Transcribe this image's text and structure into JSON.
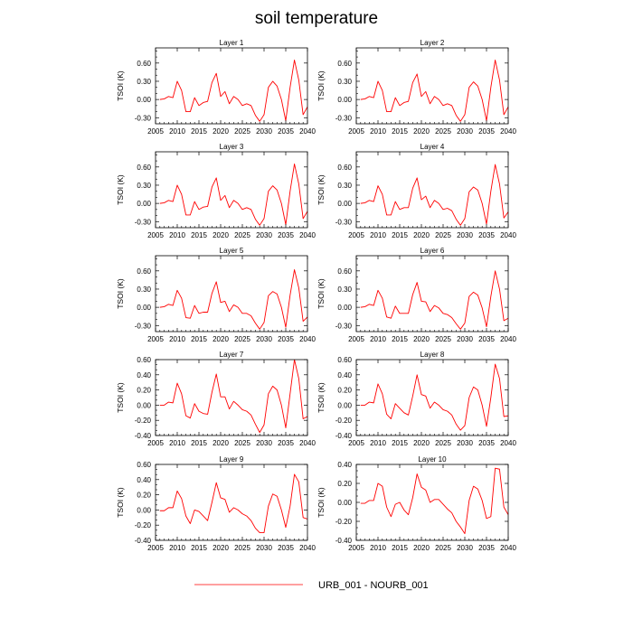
{
  "title": "soil temperature",
  "colors": {
    "series": "#ff0000",
    "axis": "#000000",
    "background": "#ffffff"
  },
  "legend": {
    "label": "URB_001 - NOURB_001",
    "placement": "bottom-center"
  },
  "chart_data": [
    {
      "type": "line",
      "title": "Layer 1",
      "xlabel": "",
      "ylabel": "TSOI  (K)",
      "xlim": [
        2005,
        2040
      ],
      "ylim": [
        -0.4,
        0.85
      ],
      "xticks": [
        2005,
        2010,
        2015,
        2020,
        2025,
        2030,
        2035,
        2040
      ],
      "yticks": [
        -0.3,
        0.0,
        0.3,
        0.6
      ],
      "ytick_labels": [
        "-0.30",
        "0.00",
        "0.30",
        "0.60"
      ],
      "x": [
        2006,
        2007,
        2008,
        2009,
        2010,
        2011,
        2012,
        2013,
        2014,
        2015,
        2016,
        2017,
        2018,
        2019,
        2020,
        2021,
        2022,
        2023,
        2024,
        2025,
        2026,
        2027,
        2028,
        2029,
        2030,
        2031,
        2032,
        2033,
        2034,
        2035,
        2036,
        2037,
        2038,
        2039,
        2040
      ],
      "series": [
        {
          "name": "URB_001 - NOURB_001",
          "values": [
            0.0,
            0.01,
            0.05,
            0.03,
            0.3,
            0.15,
            -0.2,
            -0.2,
            0.03,
            -0.1,
            -0.05,
            -0.03,
            0.28,
            0.43,
            0.05,
            0.13,
            -0.07,
            0.05,
            0.0,
            -0.1,
            -0.07,
            -0.1,
            -0.26,
            -0.36,
            -0.25,
            0.2,
            0.3,
            0.22,
            0.0,
            -0.35,
            0.2,
            0.65,
            0.32,
            -0.25,
            -0.12
          ]
        }
      ]
    },
    {
      "type": "line",
      "title": "Layer 2",
      "xlabel": "",
      "ylabel": "TSOI  (K)",
      "xlim": [
        2005,
        2040
      ],
      "ylim": [
        -0.4,
        0.85
      ],
      "xticks": [
        2005,
        2010,
        2015,
        2020,
        2025,
        2030,
        2035,
        2040
      ],
      "yticks": [
        -0.3,
        0.0,
        0.3,
        0.6
      ],
      "ytick_labels": [
        "-0.30",
        "0.00",
        "0.30",
        "0.60"
      ],
      "x": [
        2006,
        2007,
        2008,
        2009,
        2010,
        2011,
        2012,
        2013,
        2014,
        2015,
        2016,
        2017,
        2018,
        2019,
        2020,
        2021,
        2022,
        2023,
        2024,
        2025,
        2026,
        2027,
        2028,
        2029,
        2030,
        2031,
        2032,
        2033,
        2034,
        2035,
        2036,
        2037,
        2038,
        2039,
        2040
      ],
      "series": [
        {
          "name": "URB_001 - NOURB_001",
          "values": [
            0.0,
            0.01,
            0.05,
            0.03,
            0.3,
            0.15,
            -0.2,
            -0.2,
            0.03,
            -0.1,
            -0.05,
            -0.03,
            0.28,
            0.42,
            0.05,
            0.13,
            -0.07,
            0.05,
            0.0,
            -0.1,
            -0.07,
            -0.1,
            -0.26,
            -0.36,
            -0.25,
            0.2,
            0.29,
            0.22,
            0.0,
            -0.35,
            0.2,
            0.65,
            0.32,
            -0.25,
            -0.12
          ]
        }
      ]
    },
    {
      "type": "line",
      "title": "Layer 3",
      "xlabel": "",
      "ylabel": "TSOI  (K)",
      "xlim": [
        2005,
        2040
      ],
      "ylim": [
        -0.4,
        0.85
      ],
      "xticks": [
        2005,
        2010,
        2015,
        2020,
        2025,
        2030,
        2035,
        2040
      ],
      "yticks": [
        -0.3,
        0.0,
        0.3,
        0.6
      ],
      "ytick_labels": [
        "-0.30",
        "0.00",
        "0.30",
        "0.60"
      ],
      "x": [
        2006,
        2007,
        2008,
        2009,
        2010,
        2011,
        2012,
        2013,
        2014,
        2015,
        2016,
        2017,
        2018,
        2019,
        2020,
        2021,
        2022,
        2023,
        2024,
        2025,
        2026,
        2027,
        2028,
        2029,
        2030,
        2031,
        2032,
        2033,
        2034,
        2035,
        2036,
        2037,
        2038,
        2039,
        2040
      ],
      "series": [
        {
          "name": "URB_001 - NOURB_001",
          "values": [
            0.0,
            0.01,
            0.05,
            0.03,
            0.3,
            0.15,
            -0.19,
            -0.19,
            0.03,
            -0.1,
            -0.06,
            -0.05,
            0.27,
            0.42,
            0.05,
            0.13,
            -0.07,
            0.05,
            0.0,
            -0.1,
            -0.07,
            -0.1,
            -0.26,
            -0.36,
            -0.25,
            0.2,
            0.29,
            0.22,
            0.0,
            -0.35,
            0.2,
            0.65,
            0.32,
            -0.25,
            -0.13
          ]
        }
      ]
    },
    {
      "type": "line",
      "title": "Layer 4",
      "xlabel": "",
      "ylabel": "TSOI  (K)",
      "xlim": [
        2005,
        2040
      ],
      "ylim": [
        -0.4,
        0.85
      ],
      "xticks": [
        2005,
        2010,
        2015,
        2020,
        2025,
        2030,
        2035,
        2040
      ],
      "yticks": [
        -0.3,
        0.0,
        0.3,
        0.6
      ],
      "ytick_labels": [
        "-0.30",
        "0.00",
        "0.30",
        "0.60"
      ],
      "x": [
        2006,
        2007,
        2008,
        2009,
        2010,
        2011,
        2012,
        2013,
        2014,
        2015,
        2016,
        2017,
        2018,
        2019,
        2020,
        2021,
        2022,
        2023,
        2024,
        2025,
        2026,
        2027,
        2028,
        2029,
        2030,
        2031,
        2032,
        2033,
        2034,
        2035,
        2036,
        2037,
        2038,
        2039,
        2040
      ],
      "series": [
        {
          "name": "URB_001 - NOURB_001",
          "values": [
            0.0,
            0.01,
            0.05,
            0.03,
            0.29,
            0.15,
            -0.19,
            -0.19,
            0.03,
            -0.1,
            -0.07,
            -0.07,
            0.25,
            0.42,
            0.06,
            0.12,
            -0.07,
            0.05,
            0.0,
            -0.1,
            -0.08,
            -0.12,
            -0.26,
            -0.36,
            -0.25,
            0.19,
            0.27,
            0.22,
            0.0,
            -0.34,
            0.2,
            0.64,
            0.32,
            -0.24,
            -0.14
          ]
        }
      ]
    },
    {
      "type": "line",
      "title": "Layer 5",
      "xlabel": "",
      "ylabel": "TSOI  (K)",
      "xlim": [
        2005,
        2040
      ],
      "ylim": [
        -0.4,
        0.85
      ],
      "xticks": [
        2005,
        2010,
        2015,
        2020,
        2025,
        2030,
        2035,
        2040
      ],
      "yticks": [
        -0.3,
        0.0,
        0.3,
        0.6
      ],
      "ytick_labels": [
        "-0.30",
        "0.00",
        "0.30",
        "0.60"
      ],
      "x": [
        2006,
        2007,
        2008,
        2009,
        2010,
        2011,
        2012,
        2013,
        2014,
        2015,
        2016,
        2017,
        2018,
        2019,
        2020,
        2021,
        2022,
        2023,
        2024,
        2025,
        2026,
        2027,
        2028,
        2029,
        2030,
        2031,
        2032,
        2033,
        2034,
        2035,
        2036,
        2037,
        2038,
        2039,
        2040
      ],
      "series": [
        {
          "name": "URB_001 - NOURB_001",
          "values": [
            0.0,
            0.01,
            0.05,
            0.03,
            0.28,
            0.15,
            -0.17,
            -0.18,
            0.03,
            -0.1,
            -0.08,
            -0.08,
            0.23,
            0.42,
            0.08,
            0.1,
            -0.07,
            0.04,
            0.0,
            -0.1,
            -0.1,
            -0.14,
            -0.26,
            -0.36,
            -0.25,
            0.19,
            0.26,
            0.22,
            0.0,
            -0.33,
            0.2,
            0.62,
            0.32,
            -0.23,
            -0.16
          ]
        }
      ]
    },
    {
      "type": "line",
      "title": "Layer 6",
      "xlabel": "",
      "ylabel": "TSOI  (K)",
      "xlim": [
        2005,
        2040
      ],
      "ylim": [
        -0.4,
        0.85
      ],
      "xticks": [
        2005,
        2010,
        2015,
        2020,
        2025,
        2030,
        2035,
        2040
      ],
      "yticks": [
        -0.3,
        0.0,
        0.3,
        0.6
      ],
      "ytick_labels": [
        "-0.30",
        "0.00",
        "0.30",
        "0.60"
      ],
      "x": [
        2006,
        2007,
        2008,
        2009,
        2010,
        2011,
        2012,
        2013,
        2014,
        2015,
        2016,
        2017,
        2018,
        2019,
        2020,
        2021,
        2022,
        2023,
        2024,
        2025,
        2026,
        2027,
        2028,
        2029,
        2030,
        2031,
        2032,
        2033,
        2034,
        2035,
        2036,
        2037,
        2038,
        2039,
        2040
      ],
      "series": [
        {
          "name": "URB_001 - NOURB_001",
          "values": [
            0.0,
            0.01,
            0.05,
            0.03,
            0.28,
            0.15,
            -0.16,
            -0.18,
            0.02,
            -0.1,
            -0.1,
            -0.1,
            0.21,
            0.41,
            0.1,
            0.09,
            -0.07,
            0.03,
            -0.01,
            -0.1,
            -0.12,
            -0.17,
            -0.27,
            -0.36,
            -0.26,
            0.18,
            0.25,
            0.2,
            -0.01,
            -0.32,
            0.18,
            0.6,
            0.3,
            -0.22,
            -0.18
          ]
        }
      ]
    },
    {
      "type": "line",
      "title": "Layer 7",
      "xlabel": "",
      "ylabel": "TSOI  (K)",
      "xlim": [
        2005,
        2040
      ],
      "ylim": [
        -0.4,
        0.6
      ],
      "xticks": [
        2005,
        2010,
        2015,
        2020,
        2025,
        2030,
        2035,
        2040
      ],
      "yticks": [
        -0.4,
        -0.2,
        0.0,
        0.2,
        0.4,
        0.6
      ],
      "ytick_labels": [
        "-0.40",
        "-0.20",
        "0.00",
        "0.20",
        "0.40",
        "0.60"
      ],
      "x": [
        2006,
        2007,
        2008,
        2009,
        2010,
        2011,
        2012,
        2013,
        2014,
        2015,
        2016,
        2017,
        2018,
        2019,
        2020,
        2021,
        2022,
        2023,
        2024,
        2025,
        2026,
        2027,
        2028,
        2029,
        2030,
        2031,
        2032,
        2033,
        2034,
        2035,
        2036,
        2037,
        2038,
        2039,
        2040
      ],
      "series": [
        {
          "name": "URB_001 - NOURB_001",
          "values": [
            0.0,
            0.0,
            0.04,
            0.03,
            0.29,
            0.15,
            -0.14,
            -0.17,
            0.02,
            -0.08,
            -0.11,
            -0.12,
            0.17,
            0.41,
            0.11,
            0.11,
            -0.05,
            0.05,
            0.0,
            -0.06,
            -0.08,
            -0.13,
            -0.25,
            -0.36,
            -0.26,
            0.15,
            0.25,
            0.2,
            0.0,
            -0.3,
            0.15,
            0.6,
            0.35,
            -0.18,
            -0.15
          ]
        }
      ]
    },
    {
      "type": "line",
      "title": "Layer 8",
      "xlabel": "",
      "ylabel": "TSOI  (K)",
      "xlim": [
        2005,
        2040
      ],
      "ylim": [
        -0.4,
        0.6
      ],
      "xticks": [
        2005,
        2010,
        2015,
        2020,
        2025,
        2030,
        2035,
        2040
      ],
      "yticks": [
        -0.4,
        -0.2,
        0.0,
        0.2,
        0.4,
        0.6
      ],
      "ytick_labels": [
        "-0.40",
        "-0.20",
        "0.00",
        "0.20",
        "0.40",
        "0.60"
      ],
      "x": [
        2006,
        2007,
        2008,
        2009,
        2010,
        2011,
        2012,
        2013,
        2014,
        2015,
        2016,
        2017,
        2018,
        2019,
        2020,
        2021,
        2022,
        2023,
        2024,
        2025,
        2026,
        2027,
        2028,
        2029,
        2030,
        2031,
        2032,
        2033,
        2034,
        2035,
        2036,
        2037,
        2038,
        2039,
        2040
      ],
      "series": [
        {
          "name": "URB_001 - NOURB_001",
          "values": [
            0.0,
            0.0,
            0.04,
            0.03,
            0.28,
            0.15,
            -0.12,
            -0.18,
            0.02,
            -0.04,
            -0.1,
            -0.13,
            0.12,
            0.4,
            0.14,
            0.12,
            -0.04,
            0.04,
            0.0,
            -0.06,
            -0.08,
            -0.13,
            -0.25,
            -0.33,
            -0.27,
            0.1,
            0.24,
            0.2,
            0.0,
            -0.28,
            0.1,
            0.54,
            0.35,
            -0.15,
            -0.14
          ]
        }
      ]
    },
    {
      "type": "line",
      "title": "Layer 9",
      "xlabel": "",
      "ylabel": "TSOI  (K)",
      "xlim": [
        2005,
        2040
      ],
      "ylim": [
        -0.4,
        0.6
      ],
      "xticks": [
        2005,
        2010,
        2015,
        2020,
        2025,
        2030,
        2035,
        2040
      ],
      "yticks": [
        -0.4,
        -0.2,
        0.0,
        0.2,
        0.4,
        0.6
      ],
      "ytick_labels": [
        "-0.40",
        "-0.20",
        "0.00",
        "0.20",
        "0.40",
        "0.60"
      ],
      "x": [
        2006,
        2007,
        2008,
        2009,
        2010,
        2011,
        2012,
        2013,
        2014,
        2015,
        2016,
        2017,
        2018,
        2019,
        2020,
        2021,
        2022,
        2023,
        2024,
        2025,
        2026,
        2027,
        2028,
        2029,
        2030,
        2031,
        2032,
        2033,
        2034,
        2035,
        2036,
        2037,
        2038,
        2039,
        2040
      ],
      "series": [
        {
          "name": "URB_001 - NOURB_001",
          "values": [
            -0.01,
            -0.01,
            0.03,
            0.03,
            0.25,
            0.15,
            -0.08,
            -0.18,
            0.0,
            -0.02,
            -0.08,
            -0.14,
            0.1,
            0.36,
            0.16,
            0.14,
            -0.03,
            0.03,
            0.0,
            -0.05,
            -0.08,
            -0.14,
            -0.24,
            -0.3,
            -0.3,
            0.05,
            0.21,
            0.18,
            0.0,
            -0.23,
            0.05,
            0.47,
            0.37,
            -0.1,
            -0.12
          ]
        }
      ]
    },
    {
      "type": "line",
      "title": "Layer 10",
      "xlabel": "",
      "ylabel": "TSOI  (K)",
      "xlim": [
        2005,
        2040
      ],
      "ylim": [
        -0.4,
        0.4
      ],
      "xticks": [
        2005,
        2010,
        2015,
        2020,
        2025,
        2030,
        2035,
        2040
      ],
      "yticks": [
        -0.4,
        -0.2,
        0.0,
        0.2,
        0.4
      ],
      "ytick_labels": [
        "-0.40",
        "-0.20",
        "0.00",
        "0.20",
        "0.40"
      ],
      "x": [
        2006,
        2007,
        2008,
        2009,
        2010,
        2011,
        2012,
        2013,
        2014,
        2015,
        2016,
        2017,
        2018,
        2019,
        2020,
        2021,
        2022,
        2023,
        2024,
        2025,
        2026,
        2027,
        2028,
        2029,
        2030,
        2031,
        2032,
        2033,
        2034,
        2035,
        2036,
        2037,
        2038,
        2039,
        2040
      ],
      "series": [
        {
          "name": "URB_001 - NOURB_001",
          "values": [
            -0.01,
            -0.01,
            0.02,
            0.02,
            0.2,
            0.17,
            -0.05,
            -0.15,
            -0.02,
            0.0,
            -0.08,
            -0.13,
            0.05,
            0.3,
            0.16,
            0.13,
            0.0,
            0.03,
            0.03,
            -0.02,
            -0.07,
            -0.11,
            -0.2,
            -0.26,
            -0.33,
            0.02,
            0.17,
            0.14,
            0.02,
            -0.17,
            -0.15,
            0.36,
            0.35,
            -0.05,
            -0.13
          ]
        }
      ]
    }
  ]
}
